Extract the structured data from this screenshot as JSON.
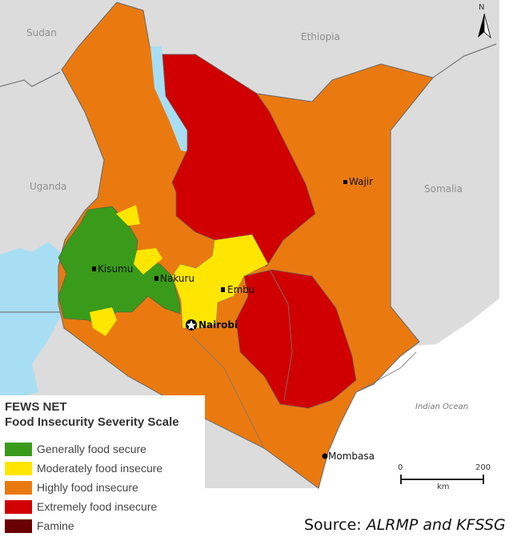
{
  "colors": {
    "generally_food_secure": "#3a9a1a",
    "moderately_food_insecure": "#ffe600",
    "highly_food_insecure": "#ea7a10",
    "extremely_food_insecure": "#d00000",
    "famine": "#6a0000",
    "water": "#a8def3",
    "neighbor_land": "#dcdcdc"
  },
  "countries": {
    "sudan": "Sudan",
    "ethiopia": "Ethiopia",
    "uganda": "Uganda",
    "somalia": "Somalia"
  },
  "ocean": "Indian Ocean",
  "cities": {
    "kisumu": "Kisumu",
    "nakuru": "Nakuru",
    "embu": "Embu",
    "nairobi": "Nairobi",
    "wajir": "Wajir",
    "mombasa": "Mombasa"
  },
  "north_arrow": "N",
  "scale": {
    "start": "0",
    "end": "200",
    "unit": "km"
  },
  "legend": {
    "title1": "FEWS NET",
    "title2": "Food Insecurity Severity Scale",
    "items": [
      {
        "label": "Generally food secure",
        "color": "#3a9a1a"
      },
      {
        "label": "Moderately food insecure",
        "color": "#ffe600"
      },
      {
        "label": "Highly food insecure",
        "color": "#ea7a10"
      },
      {
        "label": "Extremely food insecure",
        "color": "#d00000"
      },
      {
        "label": "Famine",
        "color": "#6a0000"
      }
    ]
  },
  "source": {
    "prefix": "Source: ",
    "text": "ALRMP and KFSSG"
  }
}
